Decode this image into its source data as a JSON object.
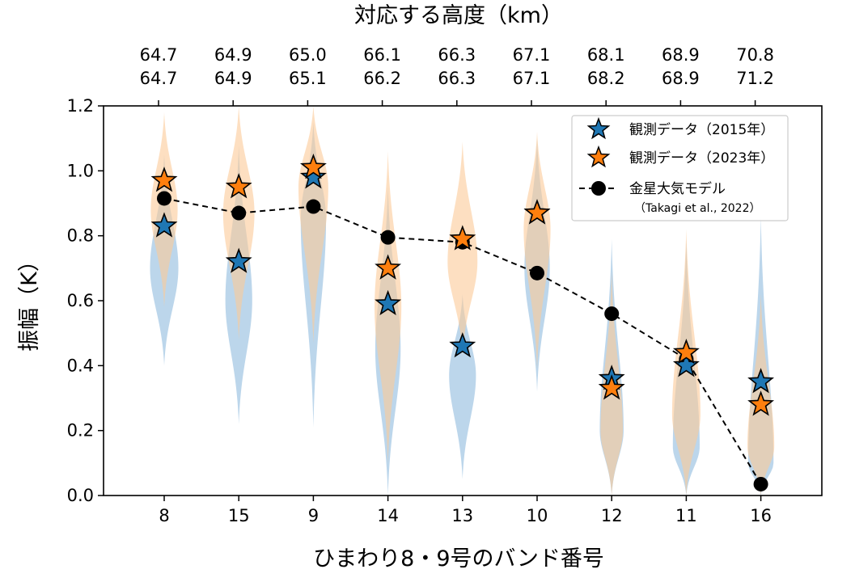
{
  "chart_data": {
    "type": "violin",
    "title": "",
    "xlabel": "ひまわり8・9号のバンド番号",
    "ylabel": "振幅（K）",
    "top_axis_label": "対応する高度（km）",
    "ylim": [
      0.0,
      1.2
    ],
    "yticks": [
      "0.0",
      "0.2",
      "0.4",
      "0.6",
      "0.8",
      "1.0",
      "1.2"
    ],
    "categories": [
      "8",
      "15",
      "9",
      "14",
      "13",
      "10",
      "12",
      "11",
      "16"
    ],
    "altitudes_2015": [
      "64.7",
      "64.9",
      "65.0",
      "66.1",
      "66.3",
      "67.1",
      "68.1",
      "68.9",
      "70.8"
    ],
    "altitudes_2023": [
      "64.7",
      "64.9",
      "65.1",
      "66.2",
      "66.3",
      "67.1",
      "68.2",
      "68.9",
      "71.2"
    ],
    "colors": {
      "blue": "#1f77b4",
      "orange": "#ff7f0e",
      "violin_blue": "#a6c8e4",
      "violin_orange": "#fbc998",
      "model": "#000000"
    },
    "series": [
      {
        "name": "観測データ（2015年）",
        "marker": "star",
        "color": "#1f77b4",
        "values": [
          0.83,
          0.72,
          0.98,
          0.59,
          0.46,
          0.87,
          0.36,
          0.4,
          0.35
        ]
      },
      {
        "name": "観測データ（2023年）",
        "marker": "star",
        "color": "#ff7f0e",
        "values": [
          0.97,
          0.95,
          1.01,
          0.7,
          0.79,
          0.87,
          0.33,
          0.44,
          0.28
        ]
      },
      {
        "name": "金星大気モデル",
        "subname": "（Takagi et al., 2022）",
        "marker": "circle",
        "linestyle": "dashed",
        "color": "#000000",
        "values": [
          0.915,
          0.87,
          0.89,
          0.795,
          0.78,
          0.685,
          0.56,
          0.42,
          0.035
        ]
      }
    ],
    "violins_2015": [
      {
        "min": 0.4,
        "max": 1.05,
        "mode": 0.7,
        "width": 0.38
      },
      {
        "min": 0.22,
        "max": 1.08,
        "mode": 0.6,
        "width": 0.36
      },
      {
        "min": 0.21,
        "max": 1.15,
        "mode": 0.85,
        "width": 0.34
      },
      {
        "min": 0.0,
        "max": 0.95,
        "mode": 0.45,
        "width": 0.34
      },
      {
        "min": 0.05,
        "max": 0.62,
        "mode": 0.37,
        "width": 0.36
      },
      {
        "min": 0.32,
        "max": 1.1,
        "mode": 0.7,
        "width": 0.34
      },
      {
        "min": 0.0,
        "max": 0.79,
        "mode": 0.2,
        "width": 0.32
      },
      {
        "min": 0.0,
        "max": 0.79,
        "mode": 0.15,
        "width": 0.36
      },
      {
        "min": 0.0,
        "max": 0.86,
        "mode": 0.1,
        "width": 0.34
      }
    ],
    "violins_2023": [
      {
        "min": 0.58,
        "max": 1.18,
        "mode": 0.88,
        "width": 0.36
      },
      {
        "min": 0.48,
        "max": 1.2,
        "mode": 0.87,
        "width": 0.42
      },
      {
        "min": 0.47,
        "max": 1.2,
        "mode": 0.95,
        "width": 0.4
      },
      {
        "min": 0.1,
        "max": 1.06,
        "mode": 0.58,
        "width": 0.36
      },
      {
        "min": 0.43,
        "max": 1.09,
        "mode": 0.72,
        "width": 0.4
      },
      {
        "min": 0.39,
        "max": 1.12,
        "mode": 0.82,
        "width": 0.36
      },
      {
        "min": 0.0,
        "max": 0.69,
        "mode": 0.2,
        "width": 0.3
      },
      {
        "min": 0.0,
        "max": 0.82,
        "mode": 0.25,
        "width": 0.38
      },
      {
        "min": 0.0,
        "max": 0.62,
        "mode": 0.15,
        "width": 0.36
      }
    ],
    "legend": {
      "placement": "top-right",
      "entries": [
        "観測データ（2015年）",
        "観測データ（2023年）",
        "金星大気モデル"
      ],
      "note": "（Takagi et al., 2022）"
    }
  }
}
